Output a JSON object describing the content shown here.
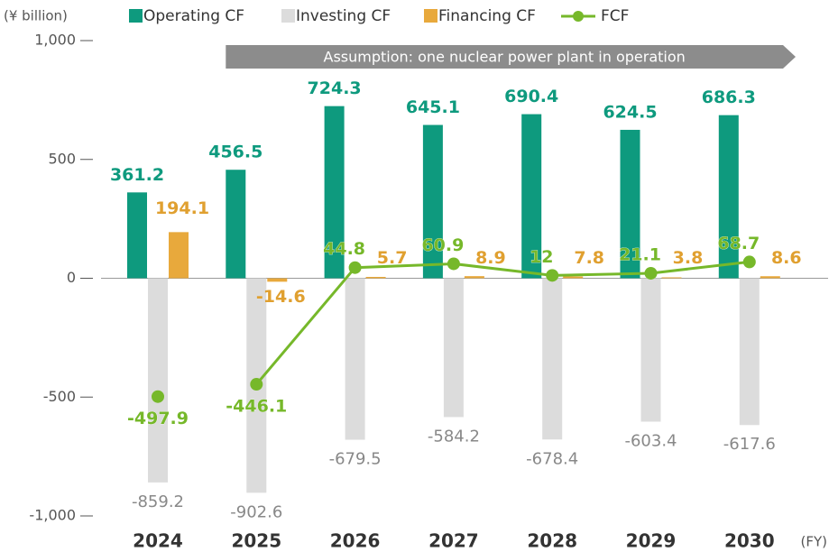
{
  "chart_data": {
    "type": "bar_line",
    "y_axis_label": "(¥ billion)",
    "x_axis_label": "(FY)",
    "categories": [
      "2024",
      "2025",
      "2026",
      "2027",
      "2028",
      "2029",
      "2030"
    ],
    "series": [
      {
        "name": "Operating CF",
        "color": "#0e9a7e",
        "values": [
          361.2,
          456.5,
          724.3,
          645.1,
          690.4,
          624.5,
          686.3
        ]
      },
      {
        "name": "Investing CF",
        "color": "#dcdcdc",
        "values": [
          -859.2,
          -902.6,
          -679.5,
          -584.2,
          -678.4,
          -603.4,
          -617.6
        ]
      },
      {
        "name": "Financing CF",
        "color": "#e8a93c",
        "values": [
          194.1,
          -14.6,
          5.7,
          8.9,
          7.8,
          3.8,
          8.6
        ]
      },
      {
        "name": "FCF",
        "color": "#76b82a",
        "type": "line",
        "values": [
          -497.9,
          -446.1,
          44.8,
          60.9,
          12,
          21.1,
          68.7
        ]
      }
    ],
    "annotation": {
      "text": "Assumption: one nuclear power plant in operation",
      "from": "2025"
    },
    "ylim": [
      -1000,
      1000
    ],
    "yticks": [
      {
        "value": -1000,
        "label": "-1,000"
      },
      -500,
      0,
      500,
      {
        "value": 1000,
        "label": "1,000"
      }
    ]
  }
}
